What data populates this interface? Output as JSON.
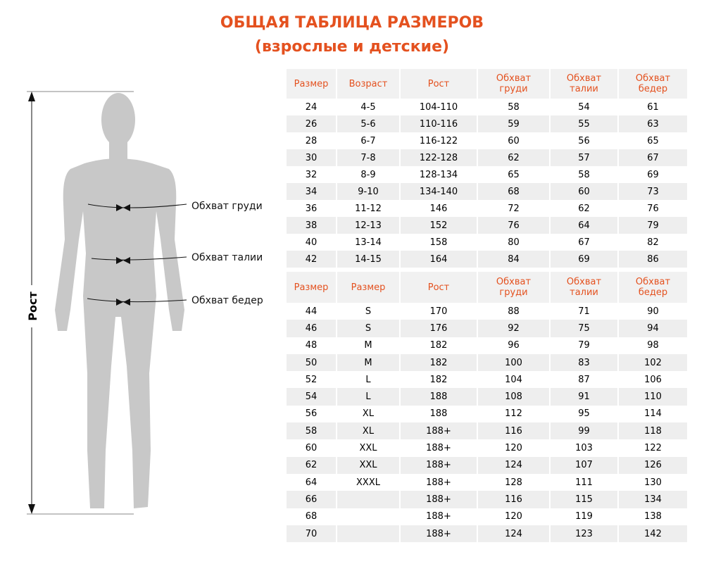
{
  "header": {
    "title": "ОБЩАЯ ТАБЛИЦА РАЗМЕРОВ",
    "subtitle": "(взрослые и детские)"
  },
  "figure": {
    "height_label": "Рост",
    "chest_label": "Обхват груди",
    "waist_label": "Обхват талии",
    "hips_label": "Обхват бедер"
  },
  "tables": [
    {
      "columns": [
        "Размер",
        "Возраст",
        "Рост",
        "Обхват груди",
        "Обхват талии",
        "Обхват бедер"
      ],
      "rows": [
        [
          "24",
          "4-5",
          "104-110",
          "58",
          "54",
          "61"
        ],
        [
          "26",
          "5-6",
          "110-116",
          "59",
          "55",
          "63"
        ],
        [
          "28",
          "6-7",
          "116-122",
          "60",
          "56",
          "65"
        ],
        [
          "30",
          "7-8",
          "122-128",
          "62",
          "57",
          "67"
        ],
        [
          "32",
          "8-9",
          "128-134",
          "65",
          "58",
          "69"
        ],
        [
          "34",
          "9-10",
          "134-140",
          "68",
          "60",
          "73"
        ],
        [
          "36",
          "11-12",
          "146",
          "72",
          "62",
          "76"
        ],
        [
          "38",
          "12-13",
          "152",
          "76",
          "64",
          "79"
        ],
        [
          "40",
          "13-14",
          "158",
          "80",
          "67",
          "82"
        ],
        [
          "42",
          "14-15",
          "164",
          "84",
          "69",
          "86"
        ]
      ]
    },
    {
      "columns": [
        "Размер",
        "Размер",
        "Рост",
        "Обхват груди",
        "Обхват талии",
        "Обхват бедер"
      ],
      "rows": [
        [
          "44",
          "S",
          "170",
          "88",
          "71",
          "90"
        ],
        [
          "46",
          "S",
          "176",
          "92",
          "75",
          "94"
        ],
        [
          "48",
          "M",
          "182",
          "96",
          "79",
          "98"
        ],
        [
          "50",
          "M",
          "182",
          "100",
          "83",
          "102"
        ],
        [
          "52",
          "L",
          "182",
          "104",
          "87",
          "106"
        ],
        [
          "54",
          "L",
          "188",
          "108",
          "91",
          "110"
        ],
        [
          "56",
          "XL",
          "188",
          "112",
          "95",
          "114"
        ],
        [
          "58",
          "XL",
          "188+",
          "116",
          "99",
          "118"
        ],
        [
          "60",
          "XXL",
          "188+",
          "120",
          "103",
          "122"
        ],
        [
          "62",
          "XXL",
          "188+",
          "124",
          "107",
          "126"
        ],
        [
          "64",
          "XXXL",
          "188+",
          "128",
          "111",
          "130"
        ],
        [
          "66",
          null,
          "188+",
          "116",
          "115",
          "134"
        ],
        [
          "68",
          null,
          "188+",
          "120",
          "119",
          "138"
        ],
        [
          "70",
          null,
          "188+",
          "124",
          "123",
          "142"
        ]
      ]
    }
  ]
}
